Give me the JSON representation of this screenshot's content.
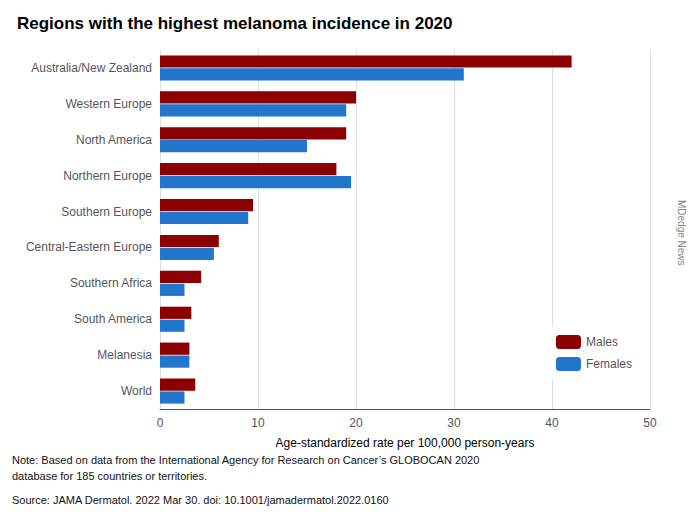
{
  "chart_data": {
    "type": "bar",
    "orientation": "horizontal",
    "title": "Regions with the highest melanoma incidence in 2020",
    "categories": [
      "Australia/New Zealand",
      "Western Europe",
      "North America",
      "Northern Europe",
      "Southern Europe",
      "Central-Eastern Europe",
      "Southern Africa",
      "South America",
      "Melanesia",
      "World"
    ],
    "series": [
      {
        "name": "Males",
        "color": "#8B0000",
        "values": [
          42,
          20,
          19,
          18,
          9.5,
          6.0,
          4.2,
          3.2,
          3.0,
          3.6
        ]
      },
      {
        "name": "Females",
        "color": "#2277CC",
        "values": [
          31,
          19,
          15,
          19.5,
          9,
          5.5,
          2.5,
          2.5,
          3.0,
          2.5
        ]
      }
    ],
    "xlabel": "Age-standardized rate per 100,000 person-years",
    "xlim": [
      0,
      50
    ],
    "xticks": [
      0,
      10,
      20,
      30,
      40,
      50
    ],
    "grid": true,
    "legend": "lower right",
    "annotations": [
      "Note: Based on data from the International Agency for Research on Cancer’s GLOBOCAN 2020\ndatabase for 185 countries or territories.",
      "Source: JAMA Dermatol. 2022 Mar 30. doi: 10.1001/jamadermatol.2022.0160",
      "MDedge News"
    ]
  }
}
